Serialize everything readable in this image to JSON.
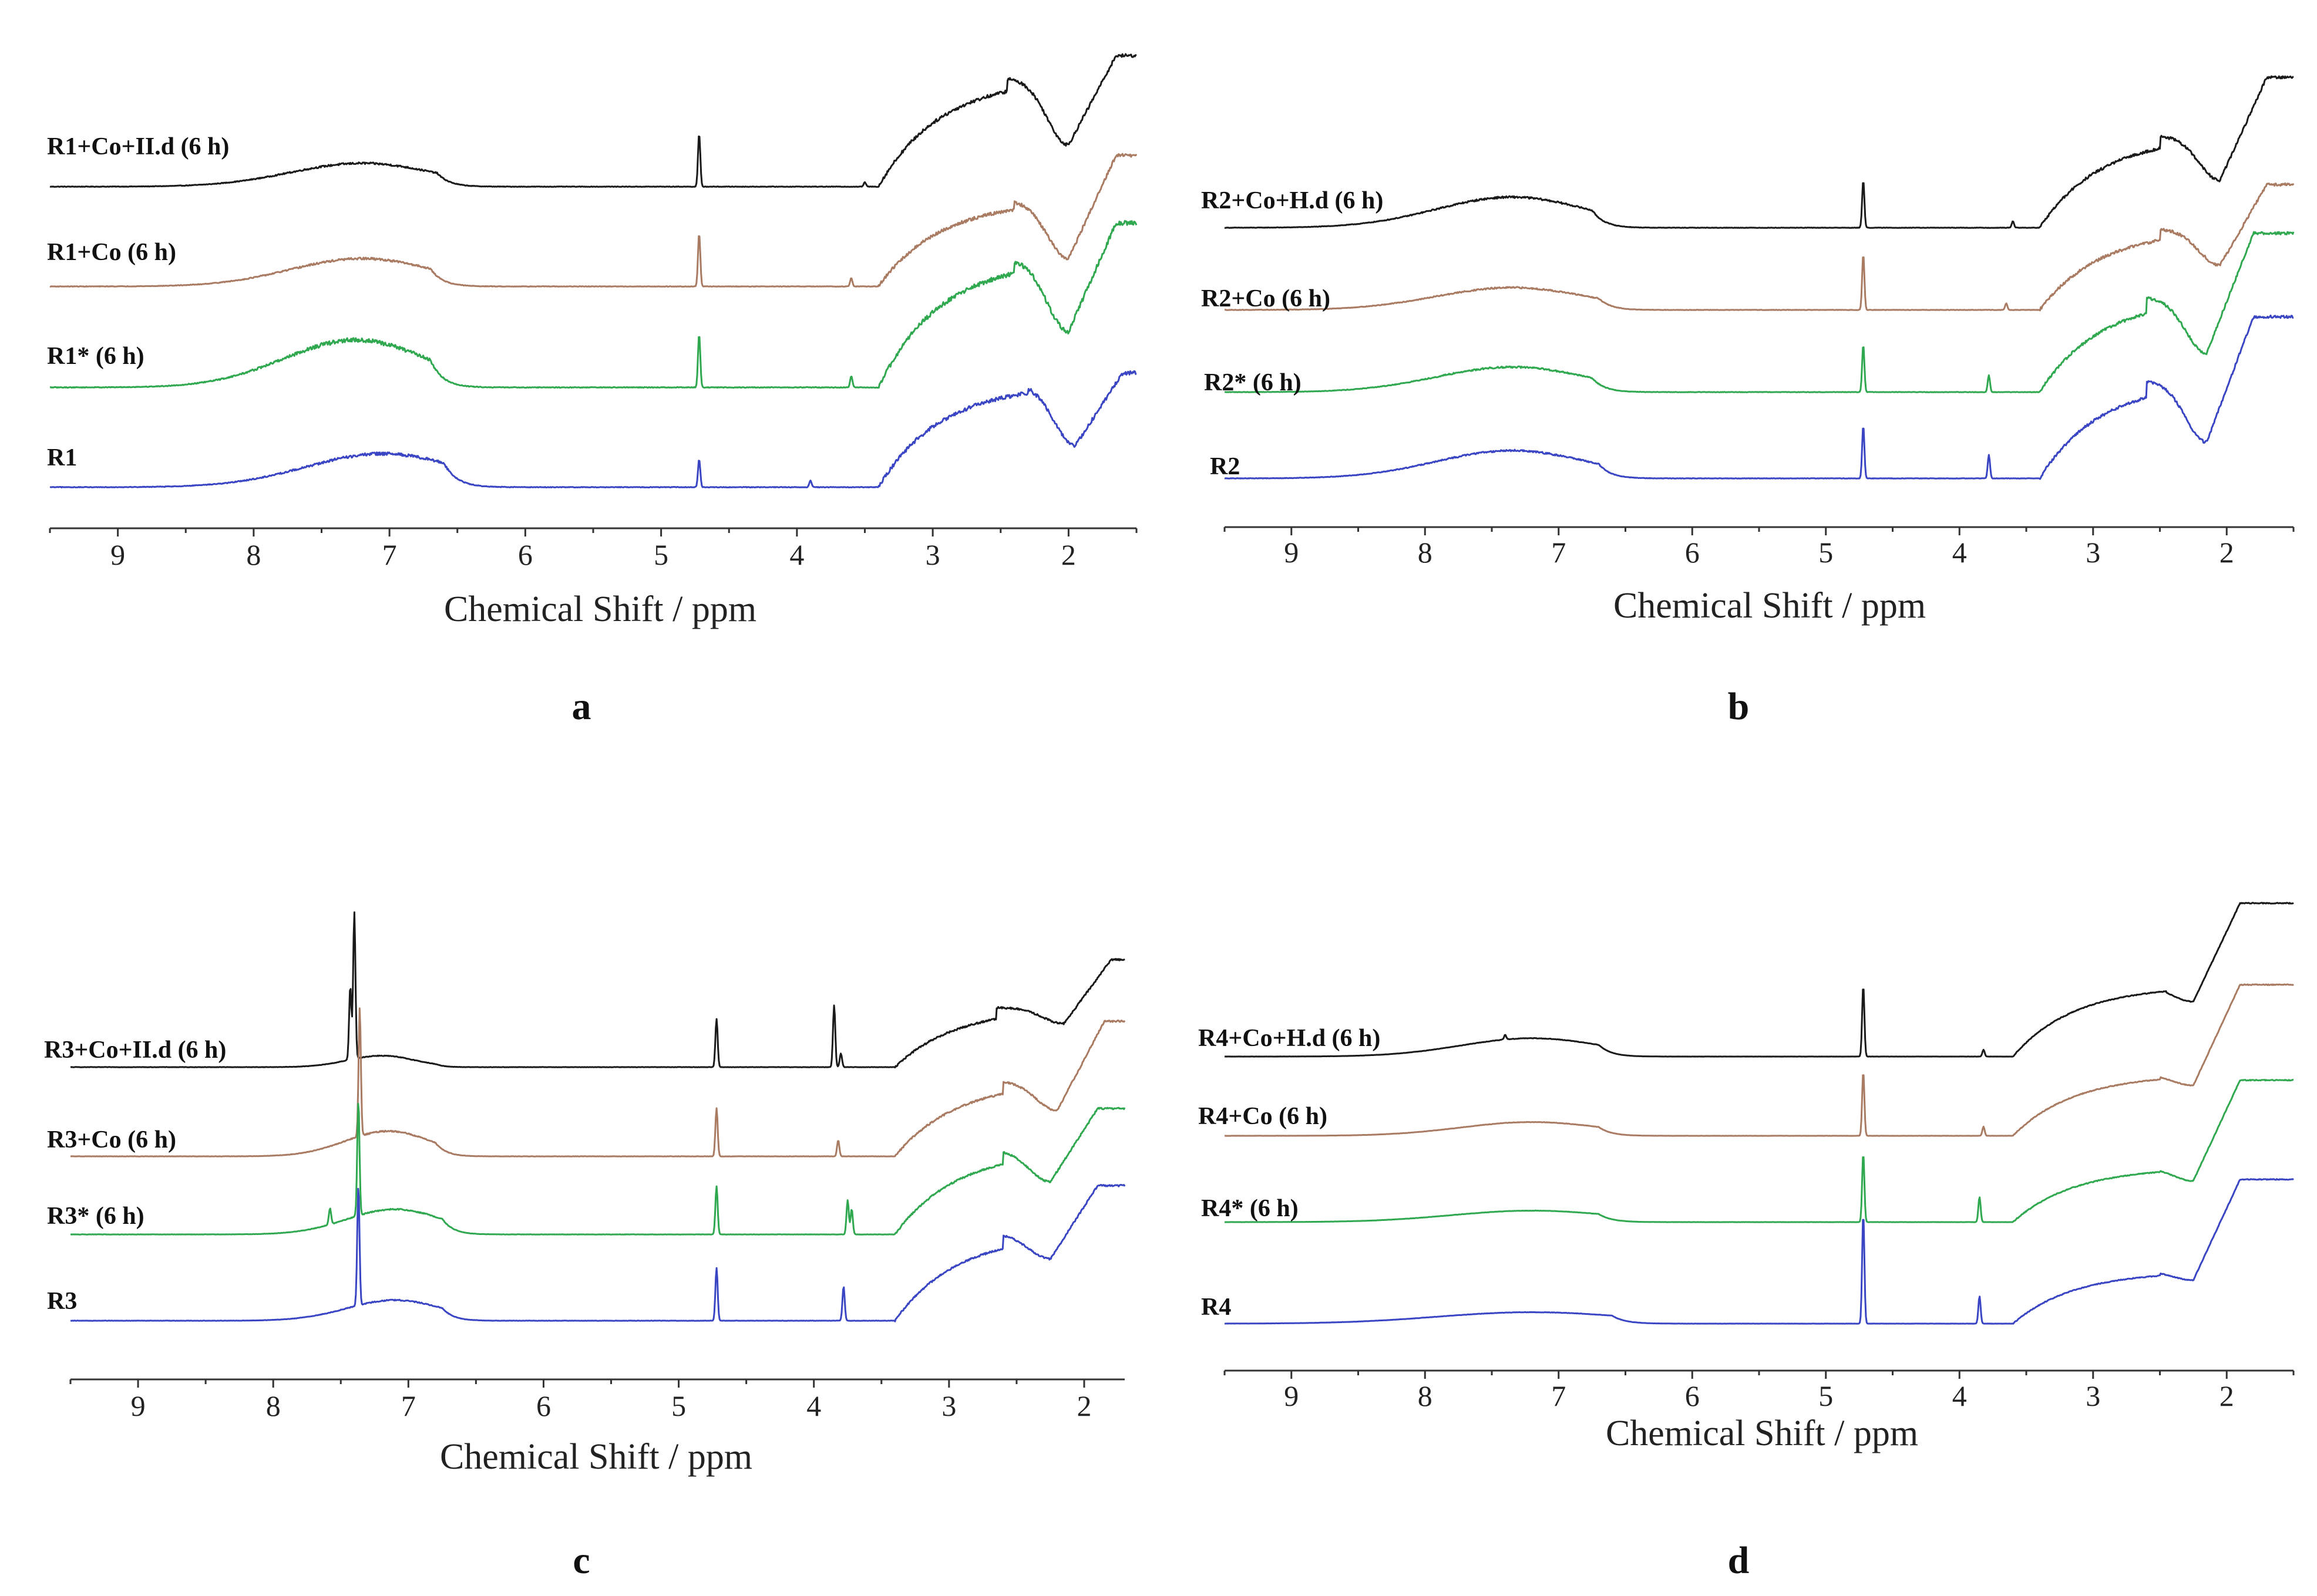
{
  "chart_data": [
    {
      "type": "line",
      "panel": "a",
      "xlabel": "Chemical Shift / ppm",
      "ylabel": "",
      "xlim": [
        9.5,
        1.5
      ],
      "x_reversed": true,
      "ticks": [
        9,
        8,
        7,
        6,
        5,
        4,
        3,
        2
      ],
      "tick_labels": [
        "9",
        "8",
        "7",
        "6",
        "5",
        "4",
        "3",
        "2"
      ],
      "series": [
        {
          "name": "R1+Co+II.d (6 h)",
          "color": "#1a1a1a",
          "baseline": 3.0,
          "aromatic": {
            "center": 7.2,
            "width": 0.75,
            "height": 0.42,
            "edge": 6.65
          },
          "sharp_peaks": [
            {
              "ppm": 4.72,
              "height": 0.95
            },
            {
              "ppm": 3.5,
              "height": 0.08
            }
          ],
          "aliphatic": {
            "start": 3.4,
            "hump_center": 2.45,
            "hump_height": 1.95,
            "dip": 2.0,
            "dip_height": 0.75,
            "end_height": 2.35
          },
          "noise": 0.06
        },
        {
          "name": "R1+Co (6 h)",
          "color": "#a97b62",
          "baseline": 2.0,
          "aromatic": {
            "center": 7.2,
            "width": 0.75,
            "height": 0.5,
            "edge": 6.7
          },
          "sharp_peaks": [
            {
              "ppm": 4.72,
              "height": 0.95
            },
            {
              "ppm": 3.6,
              "height": 0.15
            }
          ],
          "aliphatic": {
            "start": 3.4,
            "hump_center": 2.4,
            "hump_height": 1.55,
            "dip": 2.0,
            "dip_height": 0.5,
            "end_height": 2.35
          },
          "noise": 0.06
        },
        {
          "name": "R1* (6 h)",
          "color": "#2fa84f",
          "baseline": 1.0,
          "aromatic": {
            "center": 7.25,
            "width": 0.75,
            "height": 0.85,
            "edge": 6.7
          },
          "sharp_peaks": [
            {
              "ppm": 4.72,
              "height": 0.95
            },
            {
              "ppm": 3.6,
              "height": 0.2
            }
          ],
          "aliphatic": {
            "start": 3.4,
            "hump_center": 2.4,
            "hump_height": 2.3,
            "dip": 2.0,
            "dip_height": 1.0,
            "end_height": 2.95
          },
          "noise": 0.08
        },
        {
          "name": "R1",
          "color": "#3a45c4",
          "baseline": 0.0,
          "aromatic": {
            "center": 7.05,
            "width": 0.8,
            "height": 0.6,
            "edge": 6.6
          },
          "sharp_peaks": [
            {
              "ppm": 4.72,
              "height": 0.5
            },
            {
              "ppm": 3.9,
              "height": 0.12
            }
          ],
          "aliphatic": {
            "start": 3.4,
            "hump_center": 2.3,
            "hump_height": 1.85,
            "dip": 1.95,
            "dip_height": 0.75,
            "end_height": 2.05
          },
          "noise": 0.07
        }
      ]
    },
    {
      "type": "line",
      "panel": "b",
      "xlabel": "Chemical Shift / ppm",
      "ylabel": "",
      "xlim": [
        9.5,
        1.5
      ],
      "x_reversed": true,
      "ticks": [
        9,
        8,
        7,
        6,
        5,
        4,
        3,
        2
      ],
      "tick_labels": [
        "9",
        "8",
        "7",
        "6",
        "5",
        "4",
        "3",
        "2"
      ],
      "series": [
        {
          "name": "R2+Co+H.d (6 h)",
          "color": "#1a1a1a",
          "baseline": 3.0,
          "aromatic": {
            "center": 7.35,
            "width": 0.8,
            "height": 0.55,
            "edge": 6.75
          },
          "sharp_peaks": [
            {
              "ppm": 4.72,
              "height": 0.85
            },
            {
              "ppm": 3.6,
              "height": 0.12
            }
          ],
          "aliphatic": {
            "start": 3.4,
            "hump_center": 2.5,
            "hump_height": 1.65,
            "dip": 2.05,
            "dip_height": 0.85,
            "end_height": 2.7
          },
          "noise": 0.05
        },
        {
          "name": "R2+Co (6 h)",
          "color": "#a97b62",
          "baseline": 2.0,
          "aromatic": {
            "center": 7.35,
            "width": 0.8,
            "height": 0.4,
            "edge": 6.7
          },
          "sharp_peaks": [
            {
              "ppm": 4.72,
              "height": 1.0
            },
            {
              "ppm": 3.65,
              "height": 0.12
            }
          ],
          "aliphatic": {
            "start": 3.4,
            "hump_center": 2.5,
            "hump_height": 1.45,
            "dip": 2.05,
            "dip_height": 0.8,
            "end_height": 2.25
          },
          "noise": 0.05
        },
        {
          "name": "R2* (6 h)",
          "color": "#2fa84f",
          "baseline": 1.0,
          "aromatic": {
            "center": 7.35,
            "width": 0.8,
            "height": 0.45,
            "edge": 6.75
          },
          "sharp_peaks": [
            {
              "ppm": 4.72,
              "height": 0.85
            },
            {
              "ppm": 3.78,
              "height": 0.3
            }
          ],
          "aliphatic": {
            "start": 3.4,
            "hump_center": 2.6,
            "hump_height": 1.7,
            "dip": 2.15,
            "dip_height": 0.7,
            "end_height": 2.85
          },
          "noise": 0.05
        },
        {
          "name": "R2",
          "color": "#3a45c4",
          "baseline": 0.0,
          "aromatic": {
            "center": 7.35,
            "width": 0.8,
            "height": 0.5,
            "edge": 6.7
          },
          "sharp_peaks": [
            {
              "ppm": 4.72,
              "height": 0.95
            },
            {
              "ppm": 3.78,
              "height": 0.42
            }
          ],
          "aliphatic": {
            "start": 3.4,
            "hump_center": 2.6,
            "hump_height": 1.75,
            "dip": 2.15,
            "dip_height": 0.65,
            "end_height": 2.9
          },
          "noise": 0.05
        }
      ]
    },
    {
      "type": "line",
      "panel": "c",
      "xlabel": "Chemical Shift / ppm",
      "ylabel": "",
      "xlim": [
        9.5,
        1.7
      ],
      "x_reversed": true,
      "ticks": [
        9,
        8,
        7,
        6,
        5,
        4,
        3,
        2
      ],
      "tick_labels": [
        "9",
        "8",
        "7",
        "6",
        "5",
        "4",
        "3",
        "2"
      ],
      "series": [
        {
          "name": "R3+Co+II.d (6 h)",
          "color": "#1a1a1a",
          "baseline": 3.0,
          "aromatic": {
            "center": 7.2,
            "width": 0.35,
            "height": 0.25,
            "edge": 6.8
          },
          "sharp_peaks": [
            {
              "ppm": 7.4,
              "height": 3.2
            },
            {
              "ppm": 7.43,
              "height": 1.6
            },
            {
              "ppm": 4.72,
              "height": 1.05
            },
            {
              "ppm": 3.85,
              "height": 1.35
            },
            {
              "ppm": 3.8,
              "height": 0.3
            }
          ],
          "aliphatic": {
            "start": 3.4,
            "hump_center": 2.65,
            "hump_height": 1.3,
            "dip": 2.15,
            "dip_height": 0.95,
            "end_height": 2.35
          },
          "noise": 0.04
        },
        {
          "name": "R3+Co (6 h)",
          "color": "#a97b62",
          "baseline": 2.0,
          "aromatic": {
            "center": 7.15,
            "width": 0.45,
            "height": 0.55,
            "edge": 6.8
          },
          "sharp_peaks": [
            {
              "ppm": 7.36,
              "height": 2.8
            },
            {
              "ppm": 4.72,
              "height": 1.05
            },
            {
              "ppm": 3.82,
              "height": 0.35
            }
          ],
          "aliphatic": {
            "start": 3.4,
            "hump_center": 2.6,
            "hump_height": 1.65,
            "dip": 2.2,
            "dip_height": 1.0,
            "end_height": 2.95
          },
          "noise": 0.04
        },
        {
          "name": "R3* (6 h)",
          "color": "#2fa84f",
          "baseline": 1.0,
          "aromatic": {
            "center": 7.1,
            "width": 0.5,
            "height": 0.55,
            "edge": 6.75
          },
          "sharp_peaks": [
            {
              "ppm": 7.37,
              "height": 2.5
            },
            {
              "ppm": 7.58,
              "height": 0.35
            },
            {
              "ppm": 4.72,
              "height": 1.05
            },
            {
              "ppm": 3.75,
              "height": 0.75
            },
            {
              "ppm": 3.72,
              "height": 0.55
            }
          ],
          "aliphatic": {
            "start": 3.4,
            "hump_center": 2.6,
            "hump_height": 1.85,
            "dip": 2.25,
            "dip_height": 1.15,
            "end_height": 2.75
          },
          "noise": 0.04
        },
        {
          "name": "R3",
          "color": "#3a45c4",
          "baseline": 0.0,
          "aromatic": {
            "center": 7.1,
            "width": 0.5,
            "height": 0.45,
            "edge": 6.75
          },
          "sharp_peaks": [
            {
              "ppm": 7.37,
              "height": 2.6
            },
            {
              "ppm": 4.72,
              "height": 1.15
            },
            {
              "ppm": 3.78,
              "height": 0.75
            }
          ],
          "aliphatic": {
            "start": 3.4,
            "hump_center": 2.6,
            "hump_height": 1.9,
            "dip": 2.25,
            "dip_height": 1.35,
            "end_height": 2.95
          },
          "noise": 0.04
        }
      ]
    },
    {
      "type": "line",
      "panel": "d",
      "xlabel": "Chemical Shift / ppm",
      "ylabel": "",
      "xlim": [
        9.5,
        1.5
      ],
      "x_reversed": true,
      "ticks": [
        9,
        8,
        7,
        6,
        5,
        4,
        3,
        2
      ],
      "tick_labels": [
        "9",
        "8",
        "7",
        "6",
        "5",
        "4",
        "3",
        "2"
      ],
      "series": [
        {
          "name": "R4+Co+H.d (6 h)",
          "color": "#1a1a1a",
          "baseline": 3.0,
          "aromatic": {
            "center": 7.2,
            "width": 0.75,
            "height": 0.4,
            "edge": 6.7
          },
          "sharp_peaks": [
            {
              "ppm": 4.72,
              "height": 1.55
            },
            {
              "ppm": 3.82,
              "height": 0.15
            },
            {
              "ppm": 7.4,
              "height": 0.1
            }
          ],
          "aliphatic": {
            "start": 3.6,
            "hump_center": 2.45,
            "hump_height": 1.55,
            "dip": 2.25,
            "dip_height": 1.2,
            "end_height": 3.35
          },
          "noise": 0.02
        },
        {
          "name": "R4+Co (6 h)",
          "color": "#a97b62",
          "baseline": 2.0,
          "aromatic": {
            "center": 7.2,
            "width": 0.75,
            "height": 0.3,
            "edge": 6.7
          },
          "sharp_peaks": [
            {
              "ppm": 4.72,
              "height": 1.4
            },
            {
              "ppm": 3.82,
              "height": 0.2
            }
          ],
          "aliphatic": {
            "start": 3.6,
            "hump_center": 2.5,
            "hump_height": 1.35,
            "dip": 2.25,
            "dip_height": 1.1,
            "end_height": 3.3
          },
          "noise": 0.02
        },
        {
          "name": "R4* (6 h)",
          "color": "#2fa84f",
          "baseline": 1.0,
          "aromatic": {
            "center": 7.2,
            "width": 0.85,
            "height": 0.25,
            "edge": 6.7
          },
          "sharp_peaks": [
            {
              "ppm": 4.72,
              "height": 1.5
            },
            {
              "ppm": 3.85,
              "height": 0.55
            }
          ],
          "aliphatic": {
            "start": 3.6,
            "hump_center": 2.5,
            "hump_height": 1.2,
            "dip": 2.25,
            "dip_height": 0.9,
            "end_height": 3.1
          },
          "noise": 0.02
        },
        {
          "name": "R4",
          "color": "#3a45c4",
          "baseline": 0.0,
          "aromatic": {
            "center": 7.2,
            "width": 1.0,
            "height": 0.25,
            "edge": 6.6
          },
          "sharp_peaks": [
            {
              "ppm": 4.72,
              "height": 2.4
            },
            {
              "ppm": 3.85,
              "height": 0.6
            }
          ],
          "aliphatic": {
            "start": 3.6,
            "hump_center": 2.5,
            "hump_height": 1.15,
            "dip": 2.25,
            "dip_height": 0.95,
            "end_height": 3.15
          },
          "noise": 0.02
        }
      ]
    }
  ]
}
